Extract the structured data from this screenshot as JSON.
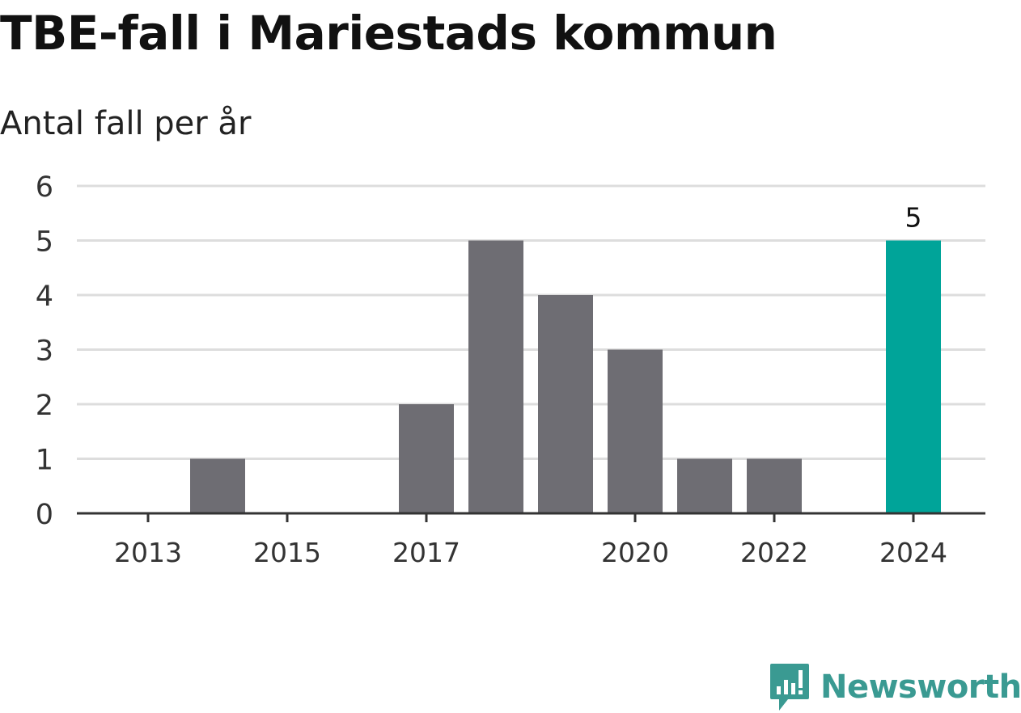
{
  "title": "TBE-fall i Mariestads kommun",
  "subtitle": "Antal fall per år",
  "colors": {
    "bar": "#6e6d73",
    "highlight": "#00a499",
    "grid": "#dddddd",
    "axis": "#333333",
    "text": "#333333",
    "brand": "#3a9a92"
  },
  "chart_data": {
    "type": "bar",
    "categories": [
      "2013",
      "2014",
      "2015",
      "2016",
      "2017",
      "2018",
      "2019",
      "2020",
      "2021",
      "2022",
      "2023",
      "2024"
    ],
    "values": [
      0,
      1,
      0,
      0,
      2,
      5,
      4,
      3,
      1,
      1,
      0,
      5
    ],
    "highlighted_category": "2024",
    "data_labels": [
      {
        "category": "2024",
        "text": "5"
      }
    ],
    "x_tick_labels": [
      "2013",
      "2015",
      "2017",
      "2020",
      "2022",
      "2024"
    ],
    "y_ticks": [
      0,
      1,
      2,
      3,
      4,
      5,
      6
    ],
    "ylim": [
      0,
      6
    ],
    "grid": true,
    "xlabel": "",
    "ylabel": ""
  },
  "brand": {
    "name": "Newsworthy",
    "icon": "newsworthy-logo-icon"
  }
}
